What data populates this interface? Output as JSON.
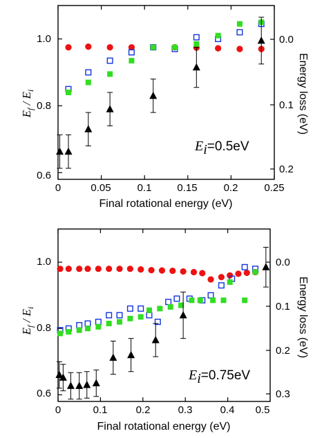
{
  "colors": {
    "ef_ei": "#ee1111",
    "open_squares": "#1133dd",
    "filled_squares": "#33dd22",
    "triangles": "#000000"
  },
  "chart_data": [
    {
      "type": "scatter",
      "xlabel": "Final rotational energy (eV)",
      "ylabel_main": "E",
      "ylabel_f": "f",
      "ylabel_div": " / E",
      "ylabel_i": "i",
      "y2label": "Energy loss (eV)",
      "annotation_main": "E",
      "annotation_sub": "i",
      "annotation_rest": "=0.5eV",
      "xlim": [
        0,
        0.25
      ],
      "ylim": [
        0.58,
        1.1
      ],
      "y2lim_inverted": [
        -0.05,
        0.21
      ],
      "xticks": [
        "0",
        "0.05",
        "0.1",
        "0.15",
        "0.2",
        "0.25"
      ],
      "yticks": [
        "0.6",
        "0.8",
        "1.0"
      ],
      "y2ticks": [
        "0.0",
        "0.1",
        "0.2"
      ],
      "series": [
        {
          "marker": "circle",
          "color": "#ee1111",
          "points": [
            [
              0.012,
              0.975
            ],
            [
              0.035,
              0.977
            ],
            [
              0.06,
              0.975
            ],
            [
              0.085,
              0.975
            ],
            [
              0.11,
              0.975
            ],
            [
              0.135,
              0.975
            ],
            [
              0.16,
              0.974
            ],
            [
              0.185,
              0.972
            ],
            [
              0.21,
              0.97
            ],
            [
              0.235,
              0.97
            ]
          ]
        },
        {
          "marker": "open-square",
          "color": "#1133dd",
          "points": [
            [
              0.012,
              0.85
            ],
            [
              0.035,
              0.9
            ],
            [
              0.06,
              0.935
            ],
            [
              0.085,
              0.96
            ],
            [
              0.11,
              0.975
            ],
            [
              0.135,
              0.97
            ],
            [
              0.16,
              1.005
            ],
            [
              0.185,
              1.0
            ],
            [
              0.21,
              1.02
            ],
            [
              0.235,
              1.045
            ]
          ]
        },
        {
          "marker": "filled-square",
          "color": "#33dd22",
          "points": [
            [
              0.012,
              0.84
            ],
            [
              0.035,
              0.87
            ],
            [
              0.06,
              0.895
            ],
            [
              0.085,
              0.935
            ],
            [
              0.11,
              0.975
            ],
            [
              0.135,
              0.975
            ],
            [
              0.16,
              0.985
            ],
            [
              0.185,
              1.01
            ],
            [
              0.21,
              1.045
            ],
            [
              0.235,
              1.05
            ]
          ]
        },
        {
          "marker": "triangle",
          "color": "#000000",
          "points": [
            [
              0.002,
              0.663,
              0.05
            ],
            [
              0.012,
              0.663,
              0.05
            ],
            [
              0.035,
              0.73,
              0.05
            ],
            [
              0.06,
              0.79,
              0.05
            ],
            [
              0.11,
              0.83,
              0.05
            ],
            [
              0.16,
              0.915,
              0.06
            ],
            [
              0.235,
              0.995,
              0.07
            ]
          ]
        }
      ]
    },
    {
      "type": "scatter",
      "xlabel": "Final rotational energy (eV)",
      "ylabel_main": "E",
      "ylabel_f": "f",
      "ylabel_div": " / E",
      "ylabel_i": "i",
      "y2label": "Energy loss (eV)",
      "annotation_main": "E",
      "annotation_sub": "i",
      "annotation_rest": "=0.75eV",
      "xlim": [
        0,
        0.5
      ],
      "ylim": [
        0.58,
        1.1
      ],
      "y2lim_inverted": [
        -0.075,
        0.315
      ],
      "xticks": [
        "0",
        "0.1",
        "0.2",
        "0.3",
        "0.4",
        "0.5"
      ],
      "yticks": [
        "0.6",
        "0.8",
        "1.0"
      ],
      "y2ticks": [
        "0.0",
        "0.1",
        "0.2",
        "0.3"
      ],
      "series": [
        {
          "marker": "circle",
          "color": "#ee1111",
          "points": [
            [
              0.005,
              0.98
            ],
            [
              0.025,
              0.98
            ],
            [
              0.05,
              0.98
            ],
            [
              0.07,
              0.98
            ],
            [
              0.095,
              0.98
            ],
            [
              0.12,
              0.98
            ],
            [
              0.145,
              0.98
            ],
            [
              0.17,
              0.98
            ],
            [
              0.195,
              0.978
            ],
            [
              0.22,
              0.976
            ],
            [
              0.245,
              0.975
            ],
            [
              0.27,
              0.974
            ],
            [
              0.295,
              0.972
            ],
            [
              0.32,
              0.97
            ],
            [
              0.34,
              0.967
            ],
            [
              0.36,
              0.948
            ],
            [
              0.385,
              0.955
            ],
            [
              0.405,
              0.96
            ],
            [
              0.425,
              0.965
            ],
            [
              0.445,
              0.968
            ],
            [
              0.465,
              0.97
            ]
          ]
        },
        {
          "marker": "open-square",
          "color": "#1133dd",
          "points": [
            [
              0.005,
              0.795
            ],
            [
              0.025,
              0.8
            ],
            [
              0.05,
              0.81
            ],
            [
              0.07,
              0.815
            ],
            [
              0.095,
              0.82
            ],
            [
              0.12,
              0.84
            ],
            [
              0.145,
              0.84
            ],
            [
              0.17,
              0.86
            ],
            [
              0.195,
              0.86
            ],
            [
              0.215,
              0.84
            ],
            [
              0.235,
              0.82
            ],
            [
              0.26,
              0.88
            ],
            [
              0.28,
              0.89
            ],
            [
              0.31,
              0.89
            ],
            [
              0.34,
              0.885
            ],
            [
              0.36,
              0.9
            ],
            [
              0.385,
              0.93
            ],
            [
              0.41,
              0.95
            ],
            [
              0.44,
              0.985
            ],
            [
              0.465,
              0.98
            ]
          ]
        },
        {
          "marker": "filled-square",
          "color": "#33dd22",
          "points": [
            [
              0.005,
              0.785
            ],
            [
              0.025,
              0.79
            ],
            [
              0.05,
              0.795
            ],
            [
              0.07,
              0.8
            ],
            [
              0.095,
              0.805
            ],
            [
              0.12,
              0.815
            ],
            [
              0.145,
              0.82
            ],
            [
              0.17,
              0.83
            ],
            [
              0.195,
              0.835
            ],
            [
              0.215,
              0.855
            ],
            [
              0.24,
              0.86
            ],
            [
              0.265,
              0.865
            ],
            [
              0.29,
              0.87
            ],
            [
              0.315,
              0.885
            ],
            [
              0.335,
              0.885
            ],
            [
              0.365,
              0.885
            ],
            [
              0.39,
              0.885
            ],
            [
              0.405,
              0.94
            ],
            [
              0.44,
              0.885
            ],
            [
              0.465,
              0.97
            ]
          ]
        },
        {
          "marker": "triangle",
          "color": "#000000",
          "points": [
            [
              0.003,
              0.66,
              0.04
            ],
            [
              0.012,
              0.652,
              0.04
            ],
            [
              0.03,
              0.627,
              0.04
            ],
            [
              0.05,
              0.627,
              0.04
            ],
            [
              0.068,
              0.63,
              0.04
            ],
            [
              0.09,
              0.635,
              0.04
            ],
            [
              0.13,
              0.712,
              0.05
            ],
            [
              0.172,
              0.72,
              0.05
            ],
            [
              0.23,
              0.765,
              0.05
            ],
            [
              0.295,
              0.84,
              0.07
            ],
            [
              0.49,
              0.985,
              0.06
            ]
          ]
        }
      ]
    }
  ]
}
